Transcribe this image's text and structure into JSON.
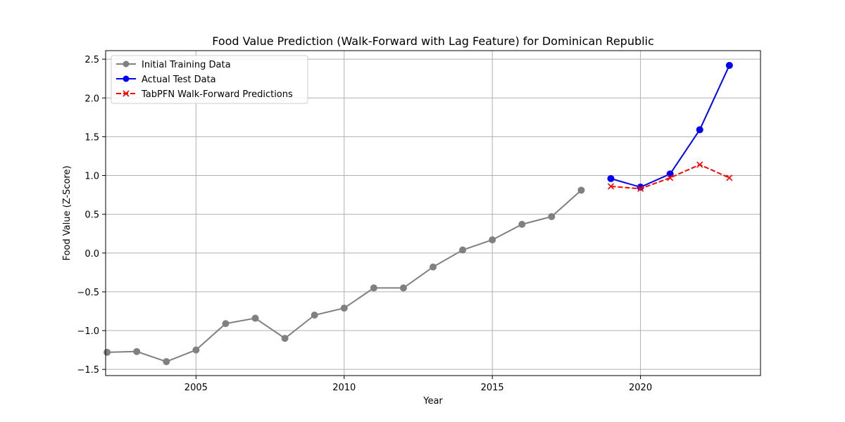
{
  "chart_data": {
    "type": "line",
    "title": "Food Value Prediction (Walk-Forward with Lag Feature) for Dominican Republic",
    "xlabel": "Year",
    "ylabel": "Food Value (Z-Score)",
    "xlim": [
      2001.95,
      2024.05
    ],
    "ylim": [
      -1.58,
      2.61
    ],
    "xticks": [
      2005,
      2010,
      2015,
      2020
    ],
    "yticks": [
      -1.5,
      -1.0,
      -0.5,
      0.0,
      0.5,
      1.0,
      1.5,
      2.0,
      2.5
    ],
    "ytick_labels": [
      "−1.5",
      "−1.0",
      "−0.5",
      "0.0",
      "0.5",
      "1.0",
      "1.5",
      "2.0",
      "2.5"
    ],
    "grid": true,
    "legend_position": "top-left",
    "series": [
      {
        "name": "Initial Training Data",
        "color": "#808080",
        "line_style": "solid",
        "marker": "circle",
        "x": [
          2002,
          2003,
          2004,
          2005,
          2006,
          2007,
          2008,
          2009,
          2010,
          2011,
          2012,
          2013,
          2014,
          2015,
          2016,
          2017,
          2018
        ],
        "y": [
          -1.28,
          -1.27,
          -1.4,
          -1.25,
          -0.91,
          -0.84,
          -1.1,
          -0.8,
          -0.71,
          -0.45,
          -0.45,
          -0.18,
          0.04,
          0.17,
          0.37,
          0.47,
          0.81
        ]
      },
      {
        "name": "Actual Test Data",
        "color": "#0000ff",
        "line_style": "solid",
        "marker": "circle",
        "x": [
          2019,
          2020,
          2021,
          2022,
          2023
        ],
        "y": [
          0.96,
          0.85,
          1.02,
          1.59,
          2.42
        ]
      },
      {
        "name": "TabPFN Walk-Forward Predictions",
        "color": "#ff0000",
        "line_style": "dashed",
        "marker": "x",
        "x": [
          2019,
          2020,
          2021,
          2022,
          2023
        ],
        "y": [
          0.86,
          0.83,
          0.97,
          1.14,
          0.97
        ]
      }
    ]
  }
}
